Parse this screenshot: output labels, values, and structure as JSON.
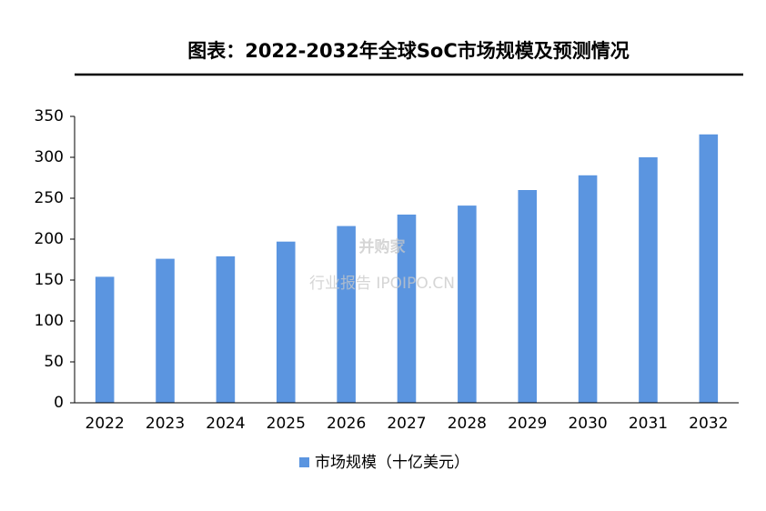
{
  "chart_data": {
    "type": "bar",
    "title": "图表：2022-2032年全球SoC市场规模及预测情况",
    "categories": [
      "2022",
      "2023",
      "2024",
      "2025",
      "2026",
      "2027",
      "2028",
      "2029",
      "2030",
      "2031",
      "2032"
    ],
    "series": [
      {
        "name": "市场规模（十亿美元）",
        "color": "#5b95e0",
        "values": [
          154,
          176,
          179,
          197,
          216,
          230,
          241,
          260,
          278,
          300,
          328
        ]
      }
    ],
    "ylim": [
      0,
      350
    ],
    "yticks": [
      0,
      50,
      100,
      150,
      200,
      250,
      300,
      350
    ],
    "grid": false,
    "legend": "bottom",
    "watermark": {
      "brand": "并购家",
      "text": "行业报告 IPOIPO.CN"
    }
  }
}
